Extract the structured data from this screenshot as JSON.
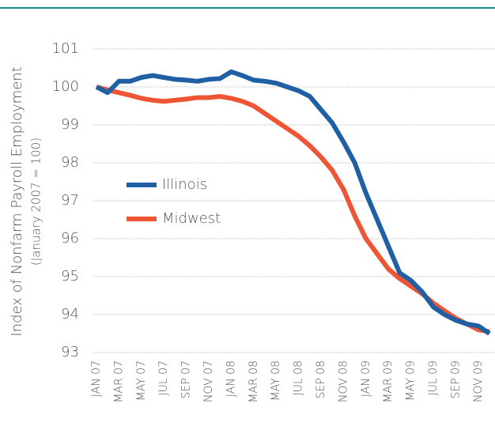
{
  "chart_data": {
    "type": "line",
    "ylabel": "Index of Nonfarm Payroll Employment",
    "ylabel_note": "(January 2007 = 100)",
    "categories": [
      "JAN 07",
      null,
      "MAR 07",
      null,
      "MAY 07",
      null,
      "JUL 07",
      null,
      "SEP 07",
      null,
      "NOV 07",
      null,
      "JAN 08",
      null,
      "MAR 08",
      null,
      "MAY 08",
      null,
      "JUL 08",
      null,
      "SEP 08",
      null,
      "NOV 08",
      null,
      "JAN 09",
      null,
      "MAR 09",
      null,
      "MAY 09",
      null,
      "JUL 09",
      null,
      "SEP 09",
      null,
      "NOV 09",
      null
    ],
    "series": [
      {
        "name": "Illinois",
        "color": "#1f5fa3",
        "values": [
          100,
          99.85,
          100.15,
          100.15,
          100.25,
          100.3,
          100.25,
          100.2,
          100.18,
          100.15,
          100.2,
          100.22,
          100.4,
          100.3,
          100.18,
          100.15,
          100.1,
          100.0,
          99.9,
          99.75,
          99.4,
          99.05,
          98.55,
          98.0,
          97.2,
          96.5,
          95.8,
          95.1,
          94.9,
          94.6,
          94.2,
          94.0,
          93.85,
          93.75,
          93.7,
          93.5
        ]
      },
      {
        "name": "Midwest",
        "color": "#ee5535",
        "values": [
          100,
          99.92,
          99.85,
          99.78,
          99.7,
          99.65,
          99.62,
          99.65,
          99.68,
          99.72,
          99.72,
          99.75,
          99.7,
          99.62,
          99.5,
          99.3,
          99.1,
          98.9,
          98.7,
          98.45,
          98.15,
          97.8,
          97.3,
          96.6,
          96.0,
          95.6,
          95.2,
          94.95,
          94.75,
          94.55,
          94.3,
          94.1,
          93.9,
          93.75,
          93.6,
          93.55
        ]
      }
    ],
    "ylim": [
      93,
      101
    ],
    "yticks": [
      93,
      94,
      95,
      96,
      97,
      98,
      99,
      100,
      101
    ],
    "grid": true
  }
}
